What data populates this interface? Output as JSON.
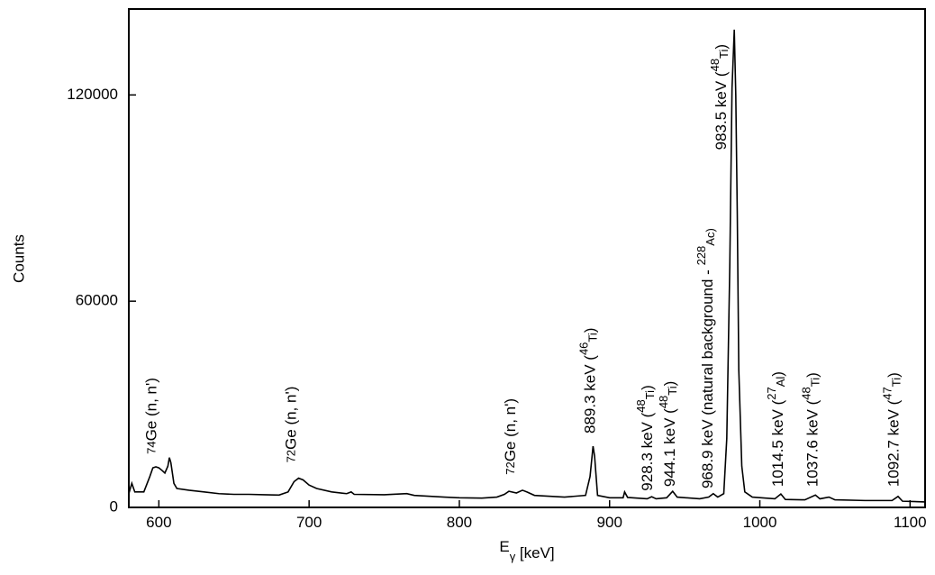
{
  "chart_data": {
    "type": "line",
    "xlabel": [
      {
        "t": "E"
      },
      {
        "sub": "γ"
      },
      {
        "t": "  [keV]"
      }
    ],
    "ylabel": "Counts",
    "xlim": [
      580,
      1110
    ],
    "xticks": [
      600,
      700,
      800,
      900,
      1000,
      1100
    ],
    "ylim": [
      0,
      145000
    ],
    "yticks": [
      0,
      60000,
      120000
    ],
    "color": "#000000",
    "x": [
      580,
      582,
      584,
      590,
      594,
      596,
      598,
      600,
      602,
      604,
      606,
      607,
      608,
      610,
      612,
      620,
      630,
      640,
      650,
      660,
      670,
      680,
      686,
      690,
      693,
      696,
      700,
      705,
      715,
      725,
      728,
      730,
      750,
      765,
      770,
      790,
      800,
      815,
      825,
      830,
      833,
      838,
      842,
      845,
      850,
      870,
      884,
      887,
      889,
      890,
      892,
      900,
      909,
      910,
      912,
      925,
      928,
      931,
      938,
      942,
      945,
      960,
      966,
      969,
      972,
      976,
      978,
      980,
      981.5,
      983,
      984,
      985,
      986,
      988,
      990,
      995,
      1010,
      1014,
      1017,
      1030,
      1037,
      1040,
      1046,
      1050,
      1070,
      1088,
      1092,
      1095,
      1110
    ],
    "values": [
      4000,
      7000,
      4500,
      4500,
      9000,
      11500,
      11800,
      11500,
      10800,
      10000,
      12000,
      14500,
      13000,
      7000,
      5500,
      5000,
      4500,
      4000,
      3800,
      3800,
      3700,
      3600,
      4500,
      7500,
      8500,
      8000,
      6500,
      5500,
      4500,
      4000,
      4500,
      3800,
      3700,
      4000,
      3500,
      3000,
      2800,
      2700,
      3000,
      3800,
      4700,
      4200,
      5000,
      4500,
      3500,
      3000,
      3500,
      9000,
      17800,
      15000,
      3500,
      2800,
      2800,
      4500,
      2900,
      2500,
      3100,
      2500,
      2800,
      4700,
      3000,
      2500,
      3000,
      4000,
      3000,
      4000,
      20000,
      70000,
      122000,
      139000,
      120000,
      85000,
      40000,
      12000,
      4500,
      3000,
      2500,
      3900,
      2300,
      2200,
      3600,
      2500,
      3000,
      2200,
      2000,
      2000,
      3200,
      1800,
      1600
    ],
    "annotations": [
      {
        "x": 600,
        "y": 15500,
        "parts": [
          {
            "sup": "74"
          },
          {
            "t": "Ge (n, n')"
          }
        ]
      },
      {
        "x": 693,
        "y": 13000,
        "parts": [
          {
            "sup": "72"
          },
          {
            "t": "Ge (n, n')"
          }
        ]
      },
      {
        "x": 839,
        "y": 9500,
        "parts": [
          {
            "sup": "72"
          },
          {
            "t": "Ge (n, n')"
          }
        ]
      },
      {
        "x": 888,
        "y": 21500,
        "parts": [
          {
            "t": "889.3 keV ("
          },
          {
            "sup": "46"
          },
          {
            "sub": "Ti"
          },
          {
            "t": ")"
          }
        ]
      },
      {
        "x": 926,
        "y": 4800,
        "parts": [
          {
            "t": "928.3 keV ("
          },
          {
            "sup": "48"
          },
          {
            "sub": "Ti"
          },
          {
            "t": ")"
          }
        ]
      },
      {
        "x": 941,
        "y": 6000,
        "parts": [
          {
            "t": "944.1 keV ("
          },
          {
            "sup": "48"
          },
          {
            "sub": "Ti"
          },
          {
            "t": ")"
          }
        ]
      },
      {
        "x": 966,
        "y": 5500,
        "parts": [
          {
            "t": "968.9 keV (natural background - "
          },
          {
            "sup": "228"
          },
          {
            "sub": "Ac)"
          }
        ]
      },
      {
        "x": 975,
        "y": 104000,
        "parts": [
          {
            "t": "983.5 keV ("
          },
          {
            "sup": "48"
          },
          {
            "sub": "Ti"
          },
          {
            "t": ")"
          }
        ]
      },
      {
        "x": 1013,
        "y": 6000,
        "parts": [
          {
            "t": "1014.5 keV ("
          },
          {
            "sup": "27"
          },
          {
            "sub": "Al"
          },
          {
            "t": ")"
          }
        ]
      },
      {
        "x": 1036,
        "y": 6000,
        "parts": [
          {
            "t": "1037.6 keV ("
          },
          {
            "sup": "48"
          },
          {
            "sub": "Ti"
          },
          {
            "t": ")"
          }
        ]
      },
      {
        "x": 1090,
        "y": 6000,
        "parts": [
          {
            "t": "1092.7 keV ("
          },
          {
            "sup": "47"
          },
          {
            "sub": "Ti"
          },
          {
            "t": ")"
          }
        ]
      }
    ]
  }
}
